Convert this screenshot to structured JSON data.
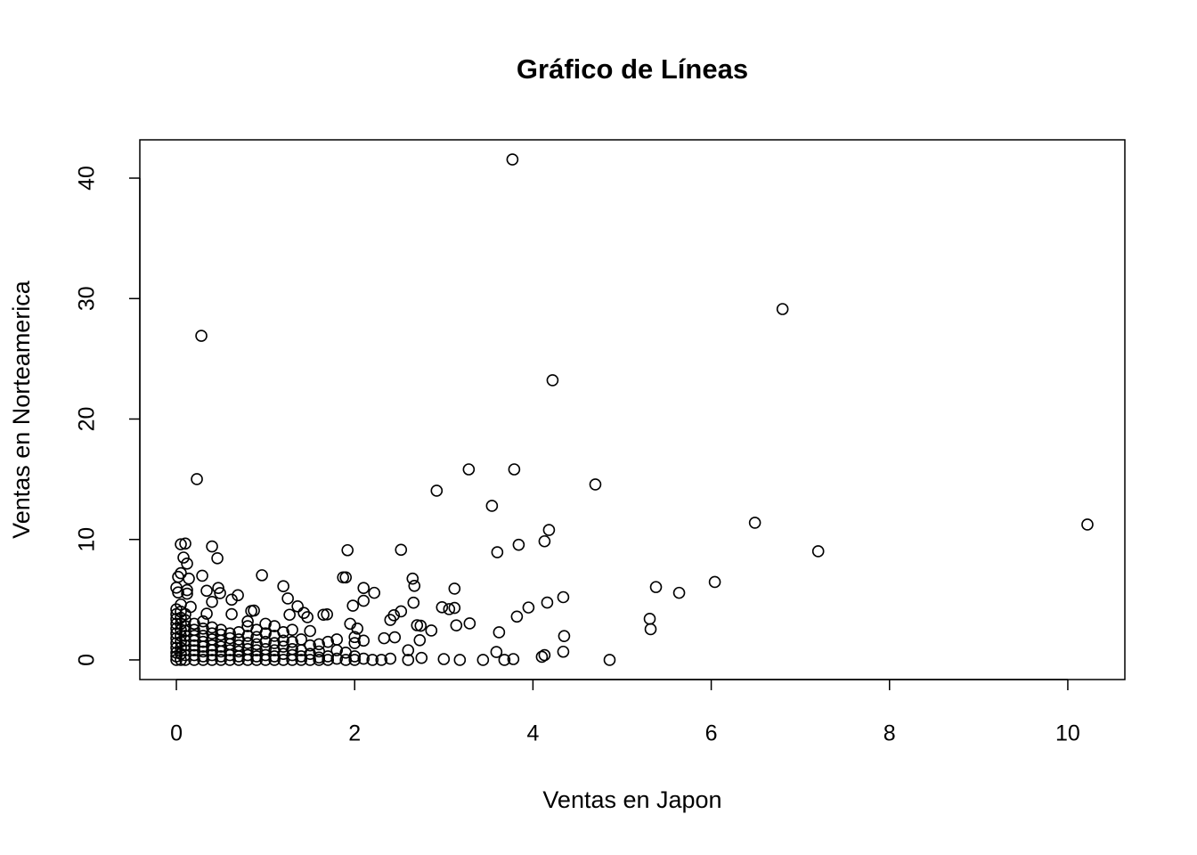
{
  "chart_data": {
    "type": "scatter",
    "title": "Gráfico de Líneas",
    "x_label": "Ventas en Japon",
    "y_label": "Ventas en Norteamerica",
    "xlim": [
      -0.41,
      10.64
    ],
    "ylim": [
      -1.63,
      43.18
    ],
    "xticks": [
      0,
      2,
      4,
      6,
      8,
      10
    ],
    "yticks": [
      0,
      10,
      20,
      30,
      40
    ],
    "color": "#000000",
    "x": [
      0,
      0,
      0,
      0,
      0,
      0,
      0,
      0,
      0,
      0,
      0,
      0,
      0.05,
      0.05,
      0.05,
      0.05,
      0.05,
      0.05,
      0.05,
      0.05,
      0.05,
      0.05,
      0.1,
      0.1,
      0.1,
      0.1,
      0.1,
      0.1,
      0.1,
      0.1,
      0.1,
      0.1,
      0.2,
      0.2,
      0.2,
      0.2,
      0.2,
      0.2,
      0.2,
      0.2,
      0.3,
      0.3,
      0.3,
      0.3,
      0.3,
      0.3,
      0.3,
      0.3,
      0.4,
      0.4,
      0.4,
      0.4,
      0.4,
      0.4,
      0.4,
      0.5,
      0.5,
      0.5,
      0.5,
      0.5,
      0.5,
      0.5,
      0.6,
      0.6,
      0.6,
      0.6,
      0.6,
      0.6,
      0.7,
      0.7,
      0.7,
      0.7,
      0.7,
      0.7,
      0.8,
      0.8,
      0.8,
      0.8,
      0.8,
      0.8,
      0.8,
      0.9,
      0.9,
      0.9,
      0.9,
      0.9,
      0.9,
      1.0,
      1.0,
      1.0,
      1.0,
      1.0,
      1.0,
      1.1,
      1.1,
      1.1,
      1.1,
      1.1,
      1.1,
      1.2,
      1.2,
      1.2,
      1.2,
      1.2,
      1.3,
      1.3,
      1.3,
      1.3,
      1.3,
      1.4,
      1.4,
      1.4,
      1.4,
      1.5,
      1.5,
      1.5,
      1.5,
      1.6,
      1.6,
      1.6,
      1.6,
      1.7,
      1.7,
      1.7,
      1.8,
      1.8,
      1.8,
      1.9,
      1.9,
      2.0,
      2.0,
      2.0,
      2.0,
      2.1,
      2.1,
      2.2,
      2.3,
      2.4,
      2.6,
      2.6,
      3.77,
      6.8,
      0.28,
      4.22,
      0.23,
      3.28,
      3.79,
      4.7,
      2.92,
      3.54,
      6.49,
      10.22,
      4.18,
      7.2,
      4.13,
      3.84,
      3.6,
      1.92,
      2.52,
      0.4,
      0.46,
      0.1,
      0.05,
      0.08,
      0.12,
      0.96,
      0.29,
      1.87,
      1.9,
      2.65,
      2.67,
      6.04,
      5.38,
      3.12,
      2.1,
      2.22,
      5.64,
      1.2,
      4.34,
      4.16,
      3.95,
      3.12,
      2.98,
      3.06,
      2.66,
      2.1,
      0.69,
      1.25,
      3.82,
      5.31,
      5.32,
      3.29,
      2.52,
      2.44,
      2.4,
      2.86,
      3.14,
      4.35,
      4.34,
      3.62,
      3.59,
      4.86,
      3.44,
      3.68,
      3.78,
      4.1,
      4.13,
      3.0,
      3.18,
      2.75,
      2.73,
      2.7,
      2.74,
      2.45,
      2.33,
      2.03,
      1.95,
      1.98,
      1.65,
      1.69,
      1.43,
      1.47,
      1.36,
      1.27,
      0.84,
      0.87,
      0.34,
      0.47,
      0.49,
      0.4,
      0.34,
      0.62,
      0.62,
      0.05,
      0.02,
      0,
      0.14,
      0.12,
      0.12,
      0.16,
      0.02
    ],
    "values": [
      0,
      0.3,
      0.6,
      1,
      1.4,
      1.8,
      2.2,
      2.6,
      3,
      3.4,
      3.8,
      4.2,
      0,
      0.5,
      1,
      1.5,
      2,
      2.5,
      3,
      3.5,
      4,
      4.6,
      0,
      0.4,
      0.8,
      1.2,
      1.6,
      2,
      2.4,
      2.8,
      3.3,
      3.8,
      0,
      0.4,
      0.8,
      1.2,
      1.6,
      2.0,
      2.5,
      3.0,
      0,
      0.3,
      0.7,
      1.1,
      1.5,
      2,
      2.6,
      3.2,
      0,
      0.4,
      0.8,
      1.2,
      1.7,
      2.2,
      2.7,
      0,
      0.3,
      0.7,
      1.1,
      1.6,
      2.1,
      2.5,
      0,
      0.4,
      0.8,
      1.3,
      1.8,
      2.2,
      0,
      0.3,
      0.7,
      1.2,
      1.7,
      2.3,
      0,
      0.4,
      0.9,
      1.4,
      2,
      2.8,
      3.2,
      0,
      0.3,
      0.8,
      1.3,
      1.9,
      2.5,
      0,
      0.4,
      0.9,
      1.5,
      2.2,
      3.0,
      0,
      0.3,
      0.8,
      1.4,
      2.0,
      2.8,
      0,
      0.5,
      1.1,
      1.6,
      2.3,
      0,
      0.4,
      0.9,
      1.5,
      2.5,
      0,
      0.3,
      0.8,
      1.7,
      0,
      0.5,
      1.2,
      2.4,
      0,
      0.2,
      0.7,
      1.3,
      0,
      0.3,
      1.5,
      0.1,
      0.8,
      1.7,
      0,
      0.6,
      0,
      0.3,
      1.9,
      1.4,
      0.1,
      1.6,
      0,
      0,
      0.1,
      0,
      0.8,
      41.55,
      29.13,
      26.91,
      23.22,
      15.01,
      15.82,
      15.82,
      14.57,
      14.05,
      12.79,
      11.39,
      11.24,
      10.79,
      9.02,
      9.85,
      9.56,
      8.94,
      9.11,
      9.14,
      9.42,
      8.44,
      9.66,
      9.6,
      8.5,
      8.0,
      7.03,
      6.99,
      6.85,
      6.85,
      6.75,
      6.15,
      6.47,
      6.05,
      5.92,
      5.97,
      5.57,
      5.57,
      6.12,
      5.21,
      4.76,
      4.35,
      4.32,
      4.37,
      4.22,
      4.75,
      4.91,
      5.37,
      5.1,
      3.6,
      3.41,
      2.55,
      3.03,
      4.03,
      3.71,
      3.32,
      2.44,
      2.87,
      1.98,
      0.68,
      2.29,
      0.66,
      0,
      0,
      0,
      0.07,
      0.26,
      0.4,
      0.07,
      0,
      0.17,
      1.64,
      2.88,
      2.84,
      1.88,
      1.8,
      2.6,
      3.0,
      4.5,
      3.75,
      3.78,
      3.9,
      3.55,
      4.45,
      3.75,
      4.06,
      4.1,
      5.74,
      5.97,
      5.55,
      4.82,
      3.84,
      3.8,
      5.0,
      7.2,
      6.9,
      6.0,
      6.75,
      5.8,
      5.5,
      4.4,
      5.6
    ]
  }
}
